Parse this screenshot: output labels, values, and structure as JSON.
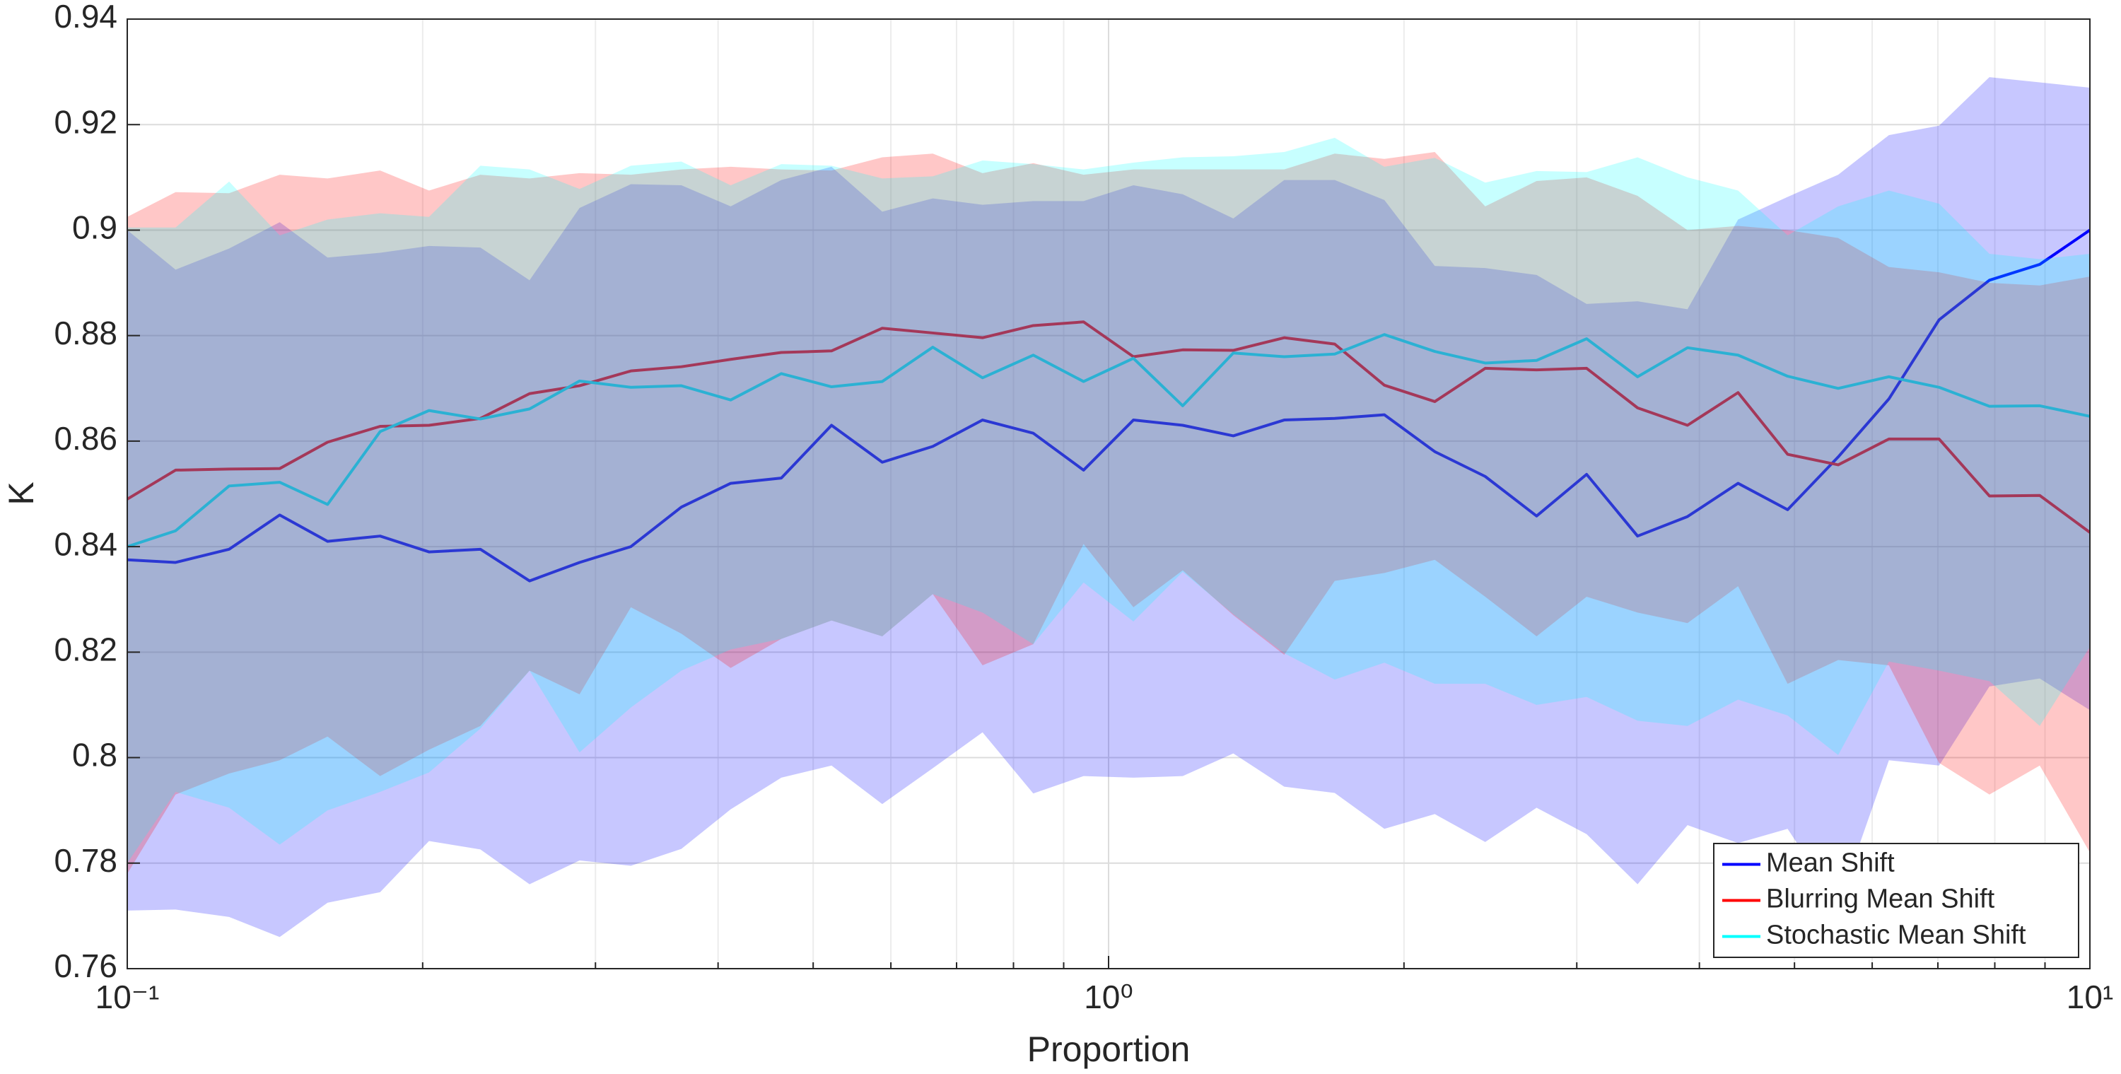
{
  "chart_data": {
    "type": "line",
    "xlabel": "Proportion",
    "ylabel": "K",
    "x": [
      0.1,
      0.112,
      0.127,
      0.143,
      0.16,
      0.181,
      0.203,
      0.229,
      0.257,
      0.289,
      0.326,
      0.367,
      0.412,
      0.464,
      0.522,
      0.588,
      0.662,
      0.744,
      0.838,
      0.943,
      1.06,
      1.19,
      1.34,
      1.51,
      1.7,
      1.91,
      2.15,
      2.42,
      2.73,
      3.07,
      3.46,
      3.89,
      4.38,
      4.92,
      5.54,
      6.24,
      7.02,
      7.9,
      8.89,
      10
    ],
    "xscale": "log",
    "xlim": [
      0.1,
      10
    ],
    "xticks": [
      {
        "value": 0.1,
        "label": "10⁻¹"
      },
      {
        "value": 1,
        "label": "10⁰"
      },
      {
        "value": 10,
        "label": "10¹"
      }
    ],
    "xminorticks": [
      0.2,
      0.3,
      0.4,
      0.5,
      0.6,
      0.7,
      0.8,
      0.9,
      2,
      3,
      4,
      5,
      6,
      7,
      8,
      9
    ],
    "ylim": [
      0.76,
      0.94
    ],
    "yticks": [
      0.76,
      0.78,
      0.8,
      0.82,
      0.84,
      0.86,
      0.88,
      0.9,
      0.92,
      0.94
    ],
    "grid": true,
    "legend": "lower right",
    "series": [
      {
        "name": "Mean Shift",
        "color": "#0000ff",
        "values": [
          0.8375,
          0.837,
          0.8395,
          0.846,
          0.841,
          0.842,
          0.839,
          0.8395,
          0.8335,
          0.837,
          0.84,
          0.8475,
          0.852,
          0.853,
          0.863,
          0.856,
          0.859,
          0.864,
          0.8615,
          0.8545,
          0.864,
          0.863,
          0.861,
          0.864,
          0.8643,
          0.865,
          0.858,
          0.8533,
          0.8458,
          0.8537,
          0.842,
          0.8457,
          0.852,
          0.847,
          0.857,
          0.868,
          0.883,
          0.8905,
          0.8935,
          0.9
        ],
        "upper": [
          0.9,
          0.8925,
          0.8965,
          0.9015,
          0.8948,
          0.8957,
          0.897,
          0.8967,
          0.8905,
          0.9042,
          0.9087,
          0.9085,
          0.9045,
          0.9095,
          0.912,
          0.9035,
          0.906,
          0.9048,
          0.9055,
          0.9055,
          0.9085,
          0.9068,
          0.9022,
          0.9095,
          0.9095,
          0.9057,
          0.8932,
          0.8928,
          0.8915,
          0.886,
          0.8865,
          0.885,
          0.902,
          0.9063,
          0.9105,
          0.918,
          0.9198,
          0.929,
          0.928,
          0.927
        ],
        "lower": [
          0.771,
          0.7712,
          0.7698,
          0.766,
          0.7725,
          0.7745,
          0.7842,
          0.7826,
          0.776,
          0.7805,
          0.7795,
          0.7827,
          0.7902,
          0.7962,
          0.7985,
          0.7912,
          0.798,
          0.8048,
          0.7932,
          0.7965,
          0.7962,
          0.7965,
          0.8008,
          0.7945,
          0.7933,
          0.7865,
          0.7893,
          0.784,
          0.7905,
          0.7855,
          0.776,
          0.7872,
          0.7838,
          0.7865,
          0.772,
          0.7995,
          0.7985,
          0.8135,
          0.815,
          0.809
        ]
      },
      {
        "name": "Blurring Mean Shift",
        "color": "#ff0000",
        "values": [
          0.849,
          0.8545,
          0.8547,
          0.8548,
          0.8598,
          0.8628,
          0.863,
          0.8643,
          0.869,
          0.8705,
          0.8733,
          0.8741,
          0.8755,
          0.8768,
          0.8771,
          0.8814,
          0.8805,
          0.8796,
          0.8819,
          0.8826,
          0.876,
          0.8773,
          0.8772,
          0.8796,
          0.8784,
          0.8706,
          0.8675,
          0.8738,
          0.8735,
          0.8738,
          0.8663,
          0.863,
          0.8692,
          0.8575,
          0.8555,
          0.8604,
          0.8604,
          0.8496,
          0.8497,
          0.8427
        ],
        "upper": [
          0.9025,
          0.9072,
          0.907,
          0.9105,
          0.9098,
          0.9113,
          0.9075,
          0.9105,
          0.9098,
          0.9108,
          0.9105,
          0.9115,
          0.912,
          0.9115,
          0.9113,
          0.9138,
          0.9145,
          0.9108,
          0.9127,
          0.9105,
          0.9115,
          0.9115,
          0.9115,
          0.9115,
          0.9145,
          0.9135,
          0.9148,
          0.9045,
          0.9093,
          0.91,
          0.9065,
          0.9,
          0.9008,
          0.9,
          0.8985,
          0.893,
          0.892,
          0.89,
          0.8895,
          0.8912
        ],
        "lower": [
          0.778,
          0.793,
          0.797,
          0.7995,
          0.804,
          0.7965,
          0.8015,
          0.806,
          0.8165,
          0.812,
          0.8285,
          0.8235,
          0.817,
          0.8225,
          0.826,
          0.823,
          0.831,
          0.8175,
          0.8215,
          0.8405,
          0.8285,
          0.8355,
          0.827,
          0.8195,
          0.8335,
          0.835,
          0.8375,
          0.8305,
          0.823,
          0.8305,
          0.8275,
          0.8255,
          0.8325,
          0.814,
          0.8185,
          0.8175,
          0.799,
          0.793,
          0.7985,
          0.782
        ]
      },
      {
        "name": "Stochastic Mean Shift",
        "color": "#00ffff",
        "values": [
          0.84,
          0.843,
          0.8515,
          0.8522,
          0.848,
          0.8618,
          0.8658,
          0.8642,
          0.8661,
          0.8714,
          0.8702,
          0.8705,
          0.8678,
          0.8728,
          0.8703,
          0.8713,
          0.8778,
          0.872,
          0.8763,
          0.8713,
          0.8757,
          0.8667,
          0.8767,
          0.876,
          0.8765,
          0.8802,
          0.877,
          0.8748,
          0.8753,
          0.8794,
          0.8722,
          0.8777,
          0.8763,
          0.8723,
          0.87,
          0.8722,
          0.8702,
          0.8666,
          0.8667,
          0.8647
        ],
        "upper": [
          0.9005,
          0.9005,
          0.9092,
          0.899,
          0.902,
          0.9032,
          0.9025,
          0.9122,
          0.9115,
          0.9078,
          0.9122,
          0.913,
          0.9085,
          0.9125,
          0.9122,
          0.9098,
          0.9102,
          0.9132,
          0.9125,
          0.9115,
          0.9128,
          0.9138,
          0.914,
          0.9148,
          0.9175,
          0.912,
          0.9137,
          0.909,
          0.9112,
          0.911,
          0.9138,
          0.91,
          0.9075,
          0.899,
          0.9045,
          0.9075,
          0.905,
          0.8955,
          0.8945,
          0.8955
        ],
        "lower": [
          0.78,
          0.7935,
          0.7905,
          0.7835,
          0.79,
          0.7935,
          0.7972,
          0.8055,
          0.8165,
          0.801,
          0.8095,
          0.8165,
          0.8205,
          0.8225,
          0.826,
          0.823,
          0.831,
          0.8275,
          0.8215,
          0.8332,
          0.8258,
          0.8352,
          0.8272,
          0.8198,
          0.8148,
          0.818,
          0.814,
          0.814,
          0.81,
          0.8115,
          0.807,
          0.806,
          0.811,
          0.808,
          0.8005,
          0.8182,
          0.8165,
          0.8145,
          0.806,
          0.821
        ]
      }
    ]
  }
}
